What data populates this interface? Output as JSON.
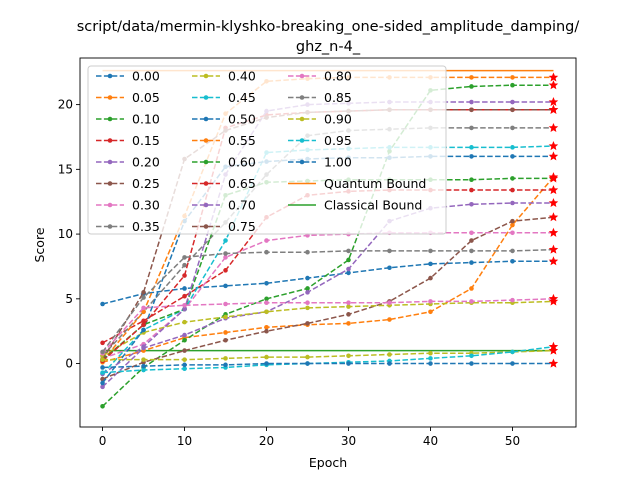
{
  "title_lines": [
    "script/data/mermin-klyshko-breaking_one-sided_amplitude_damping/",
    "ghz_n-4_"
  ],
  "chart_data": {
    "type": "line",
    "xlabel": "Epoch",
    "ylabel": "Score",
    "xlim": [
      -2.75,
      57.75
    ],
    "ylim": [
      -4.9,
      23.6
    ],
    "xticks": [
      0,
      10,
      20,
      30,
      40,
      50
    ],
    "yticks": [
      0,
      5,
      10,
      15,
      20
    ],
    "grid": false,
    "legend_position": "upper-left",
    "legend_columns": 3,
    "x": [
      0,
      5,
      10,
      15,
      20,
      25,
      30,
      35,
      40,
      45,
      50,
      55
    ],
    "series": [
      {
        "name": "0.00",
        "color": "#1f77b4",
        "values": [
          4.6,
          5.4,
          5.8,
          6.0,
          6.2,
          6.6,
          7.0,
          7.4,
          7.7,
          7.8,
          7.9,
          7.9
        ]
      },
      {
        "name": "0.05",
        "color": "#ff7f0e",
        "values": [
          0.1,
          1.0,
          2.0,
          2.4,
          2.8,
          3.0,
          3.1,
          3.4,
          4.0,
          5.8,
          10.7,
          14.4
        ]
      },
      {
        "name": "0.10",
        "color": "#2ca02c",
        "values": [
          -3.3,
          -0.3,
          1.8,
          3.8,
          5.0,
          5.8,
          8.0,
          16.4,
          21.1,
          21.4,
          21.5,
          21.5
        ]
      },
      {
        "name": "0.15",
        "color": "#d62728",
        "values": [
          1.6,
          3.3,
          5.2,
          7.2,
          11.3,
          13.0,
          13.3,
          13.4,
          13.4,
          13.4,
          13.4,
          13.4
        ]
      },
      {
        "name": "0.20",
        "color": "#9467bd",
        "values": [
          -1.8,
          1.2,
          2.2,
          3.5,
          4.0,
          5.5,
          7.3,
          11.0,
          12.0,
          12.3,
          12.4,
          12.4
        ]
      },
      {
        "name": "0.25",
        "color": "#8c564b",
        "values": [
          -1.2,
          0.1,
          1.0,
          1.8,
          2.5,
          3.1,
          3.8,
          4.8,
          6.6,
          9.5,
          11.0,
          11.3
        ]
      },
      {
        "name": "0.30",
        "color": "#e377c2",
        "values": [
          0.4,
          1.5,
          4.2,
          8.2,
          9.5,
          9.9,
          10.0,
          10.1,
          10.1,
          10.1,
          10.1,
          10.1
        ]
      },
      {
        "name": "0.35",
        "color": "#7f7f7f",
        "values": [
          0.6,
          4.0,
          7.6,
          10.9,
          14.6,
          17.6,
          18.0,
          18.1,
          18.2,
          18.2,
          18.2,
          18.2
        ]
      },
      {
        "name": "0.40",
        "color": "#bcbd22",
        "values": [
          0.6,
          2.4,
          3.2,
          3.6,
          4.0,
          4.3,
          4.4,
          4.5,
          4.6,
          4.7,
          4.7,
          4.8
        ]
      },
      {
        "name": "0.45",
        "color": "#17becf",
        "values": [
          -0.8,
          2.6,
          4.2,
          9.5,
          16.3,
          16.5,
          16.6,
          16.7,
          16.7,
          16.7,
          16.7,
          16.8
        ]
      },
      {
        "name": "0.50",
        "color": "#1f77b4",
        "values": [
          -1.5,
          2.6,
          11.0,
          15.2,
          15.6,
          15.8,
          15.9,
          15.9,
          16.0,
          16.0,
          16.0,
          16.0
        ]
      },
      {
        "name": "0.55",
        "color": "#ff7f0e",
        "values": [
          0.2,
          4.0,
          11.4,
          19.3,
          21.8,
          22.0,
          22.1,
          22.1,
          22.1,
          22.1,
          22.1,
          22.1
        ]
      },
      {
        "name": "0.60",
        "color": "#2ca02c",
        "values": [
          0.3,
          3.0,
          4.2,
          13.0,
          14.0,
          14.1,
          14.2,
          14.2,
          14.2,
          14.2,
          14.3,
          14.3
        ]
      },
      {
        "name": "0.65",
        "color": "#d62728",
        "values": [
          0.2,
          3.0,
          6.8,
          18.2,
          19.2,
          19.4,
          19.5,
          19.6,
          19.6,
          19.6,
          19.6,
          19.6
        ]
      },
      {
        "name": "0.70",
        "color": "#9467bd",
        "values": [
          -0.8,
          1.3,
          4.2,
          14.6,
          19.5,
          20.0,
          20.1,
          20.2,
          20.2,
          20.2,
          20.2,
          20.2
        ]
      },
      {
        "name": "0.75",
        "color": "#8c564b",
        "values": [
          0.3,
          5.5,
          15.8,
          18.0,
          19.0,
          19.4,
          19.5,
          19.6,
          19.6,
          19.6,
          19.6,
          19.6
        ]
      },
      {
        "name": "0.80",
        "color": "#e377c2",
        "values": [
          0.8,
          4.3,
          4.5,
          4.6,
          4.7,
          4.7,
          4.7,
          4.7,
          4.8,
          4.8,
          4.9,
          5.0
        ]
      },
      {
        "name": "0.85",
        "color": "#7f7f7f",
        "values": [
          0.9,
          5.1,
          8.2,
          8.5,
          8.6,
          8.6,
          8.7,
          8.7,
          8.7,
          8.7,
          8.7,
          8.8
        ]
      },
      {
        "name": "0.90",
        "color": "#bcbd22",
        "values": [
          0.3,
          0.3,
          0.3,
          0.4,
          0.5,
          0.5,
          0.6,
          0.7,
          0.8,
          0.8,
          0.9,
          1.0
        ]
      },
      {
        "name": "0.95",
        "color": "#17becf",
        "values": [
          -0.7,
          -0.5,
          -0.4,
          -0.3,
          -0.1,
          0.0,
          0.1,
          0.2,
          0.4,
          0.6,
          0.9,
          1.3
        ]
      },
      {
        "name": "1.00",
        "color": "#1f77b4",
        "values": [
          -0.3,
          -0.2,
          -0.1,
          -0.1,
          0.0,
          0.0,
          0.0,
          0.0,
          0.0,
          0.0,
          0.0,
          0.0
        ]
      }
    ],
    "bounds": [
      {
        "name": "Quantum Bound",
        "color": "#ff7f0e",
        "value": 22.627
      },
      {
        "name": "Classical Bound",
        "color": "#2ca02c",
        "value": 1.0
      }
    ]
  }
}
